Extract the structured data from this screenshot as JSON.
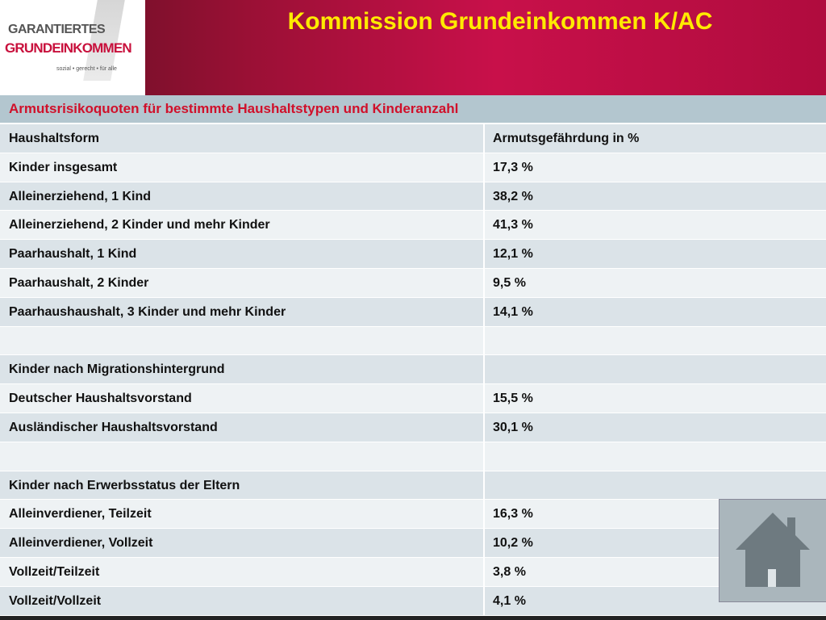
{
  "header": {
    "title": "Kommission Grundeinkommen K/AC",
    "logo": {
      "line1": "GARANTIERTES",
      "line2": "GRUNDEINKOMMEN",
      "tagline": "sozial • gerecht • für alle"
    }
  },
  "table": {
    "title": "Armutsrisikoquoten für bestimmte Haushaltstypen und Kinderanzahl",
    "rows": [
      [
        "Haushaltsform",
        "Armutsgefährdung in %"
      ],
      [
        "Kinder insgesamt",
        "17,3 %"
      ],
      [
        "Alleinerziehend, 1 Kind",
        "38,2 %"
      ],
      [
        "Alleinerziehend, 2 Kinder und mehr Kinder",
        "41,3 %"
      ],
      [
        "Paarhaushalt, 1 Kind",
        "12,1 %"
      ],
      [
        "Paarhaushalt, 2 Kinder",
        "9,5 %"
      ],
      [
        "Paarhaushaushalt, 3 Kinder und mehr Kinder",
        "14,1 %"
      ],
      [],
      [
        "Kinder nach Migrationshintergrund"
      ],
      [
        "Deutscher Haushaltsvorstand",
        "15,5 %"
      ],
      [
        "Ausländischer Haushaltsvorstand",
        "30,1 %"
      ],
      [],
      [
        "Kinder nach Erwerbsstatus der Eltern"
      ],
      [
        "Alleinverdiener, Teilzeit",
        "16,3 %"
      ],
      [
        "Alleinverdiener, Vollzeit",
        "10,2 %"
      ],
      [
        "Vollzeit/Teilzeit",
        "3,8 %"
      ],
      [
        "Vollzeit/Vollzeit",
        "4,1 %"
      ]
    ]
  }
}
